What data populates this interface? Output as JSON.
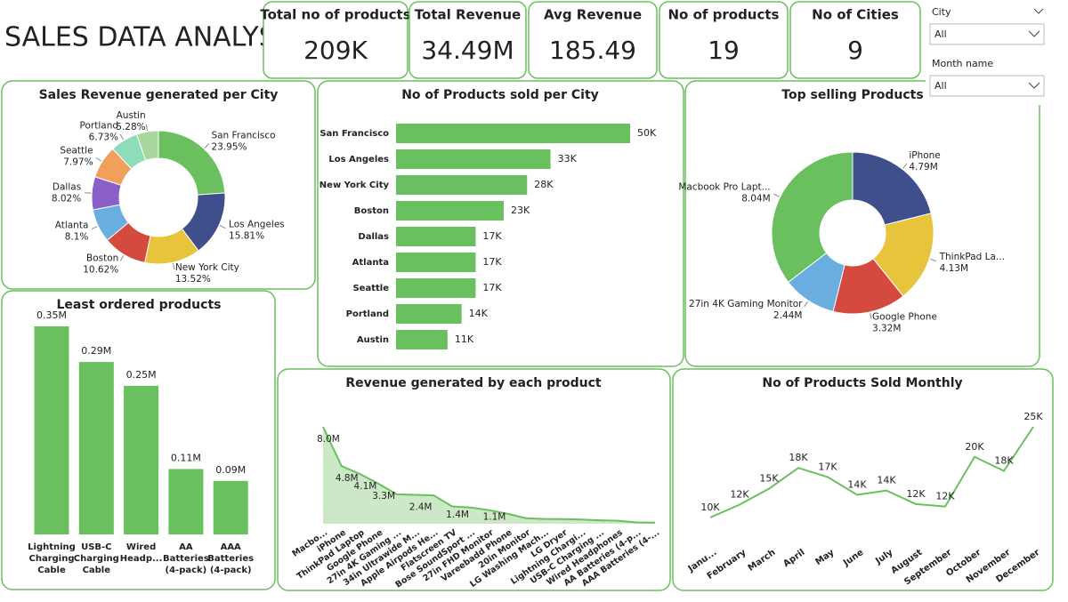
{
  "header": {
    "title": "SALES DATA ANALYSIS"
  },
  "kpis": [
    {
      "label": "Total no of products",
      "value": "209K"
    },
    {
      "label": "Total Revenue",
      "value": "34.49M"
    },
    {
      "label": "Avg Revenue",
      "value": "185.49"
    },
    {
      "label": "No of products",
      "value": "19"
    },
    {
      "label": "No of Cities",
      "value": "9"
    }
  ],
  "filters": [
    {
      "label": "City",
      "value": "All"
    },
    {
      "label": "Month name",
      "value": "All"
    }
  ],
  "chart_data": [
    {
      "type": "pie",
      "title": "Sales Revenue generated per City",
      "categories": [
        "San Francisco",
        "Los Angeles",
        "New York City",
        "Boston",
        "Atlanta",
        "Dallas",
        "Seattle",
        "Portland",
        "Austin"
      ],
      "values": [
        23.95,
        15.81,
        13.52,
        10.62,
        8.1,
        8.02,
        7.97,
        6.73,
        5.28
      ],
      "value_labels": [
        "23.95%",
        "15.81%",
        "13.52%",
        "10.62%",
        "8.1%",
        "8.02%",
        "7.97%",
        "6.73%",
        "5.28%"
      ],
      "colors": [
        "#6abf5e",
        "#3f4f8c",
        "#e8c43c",
        "#d44a3f",
        "#6aaee0",
        "#8a5fc9",
        "#f0a05a",
        "#8fdcb8",
        "#a7d79a"
      ]
    },
    {
      "type": "hbar",
      "title": "No of Products sold per City",
      "categories": [
        "San Francisco",
        "Los Angeles",
        "New York City",
        "Boston",
        "Dallas",
        "Atlanta",
        "Seattle",
        "Portland",
        "Austin"
      ],
      "values": [
        50000,
        33000,
        28000,
        23000,
        17000,
        17000,
        17000,
        14000,
        11000
      ],
      "value_labels": [
        "50K",
        "33K",
        "28K",
        "23K",
        "17K",
        "17K",
        "17K",
        "14K",
        "11K"
      ],
      "color": "#6abf5e"
    },
    {
      "type": "pie",
      "title": "Top selling Products",
      "categories": [
        "iPhone",
        "ThinkPad La...",
        "Google Phone",
        "27in 4K Gaming Monitor",
        "Macbook Pro Lapt..."
      ],
      "values": [
        4790000,
        4130000,
        3320000,
        2440000,
        8040000
      ],
      "value_labels": [
        "4.79M",
        "4.13M",
        "3.32M",
        "2.44M",
        "8.04M"
      ],
      "colors": [
        "#3f4f8c",
        "#e8c43c",
        "#d44a3f",
        "#6aaee0",
        "#6abf5e"
      ]
    },
    {
      "type": "bar",
      "title": "Least ordered products",
      "categories": [
        "Lightning Charging Cable",
        "USB-C Charging Cable",
        "Wired Headp...",
        "AA Batteries (4-pack)",
        "AAA Batteries (4-pack)"
      ],
      "values": [
        350000,
        290000,
        250000,
        110000,
        90000
      ],
      "value_labels": [
        "0.35M",
        "0.29M",
        "0.25M",
        "0.11M",
        "0.09M"
      ],
      "color": "#6abf5e"
    },
    {
      "type": "area",
      "title": "Revenue generated by each product",
      "categories": [
        "Macbo...",
        "iPhone",
        "ThinkPad Laptop",
        "Google Phone",
        "27in 4K Gaming ...",
        "34in Ultrawide M...",
        "Apple Airpods He...",
        "Flatscreen TV",
        "Bose SoundSport ...",
        "27in FHD Monitor",
        "Vareebadd Phone",
        "20in Monitor",
        "LG Washing Mach...",
        "LG Dryer",
        "Lightning Chargi...",
        "USB-C Charging ...",
        "Wired Headphones",
        "AA Batteries (4-p...",
        "AAA Batteries (4-..."
      ],
      "values": [
        8040000,
        4790000,
        4130000,
        3320000,
        2440000,
        2400000,
        2350000,
        1440000,
        1350000,
        1130000,
        830000,
        460000,
        400000,
        390000,
        350000,
        290000,
        250000,
        110000,
        90000
      ],
      "value_labels": [
        "8.0M",
        "4.8M",
        "4.1M",
        "3.3M",
        null,
        "2.4M",
        null,
        "1.4M",
        null,
        "1.1M",
        null,
        null,
        null,
        null,
        null,
        null,
        null,
        null,
        null
      ],
      "color": "#6abf5e"
    },
    {
      "type": "line",
      "title": "No of Products Sold Monthly",
      "categories": [
        "Janu...",
        "February",
        "March",
        "April",
        "May",
        "June",
        "July",
        "August",
        "September",
        "October",
        "November",
        "December"
      ],
      "values": [
        10000,
        12100,
        14700,
        18100,
        16600,
        13700,
        14400,
        12200,
        11800,
        19900,
        17600,
        24800
      ],
      "value_labels": [
        "10K",
        "12K",
        "15K",
        "18K",
        "17K",
        "14K",
        "14K",
        "12K",
        "12K",
        "20K",
        "18K",
        "25K"
      ],
      "color": "#6abf5e"
    }
  ]
}
